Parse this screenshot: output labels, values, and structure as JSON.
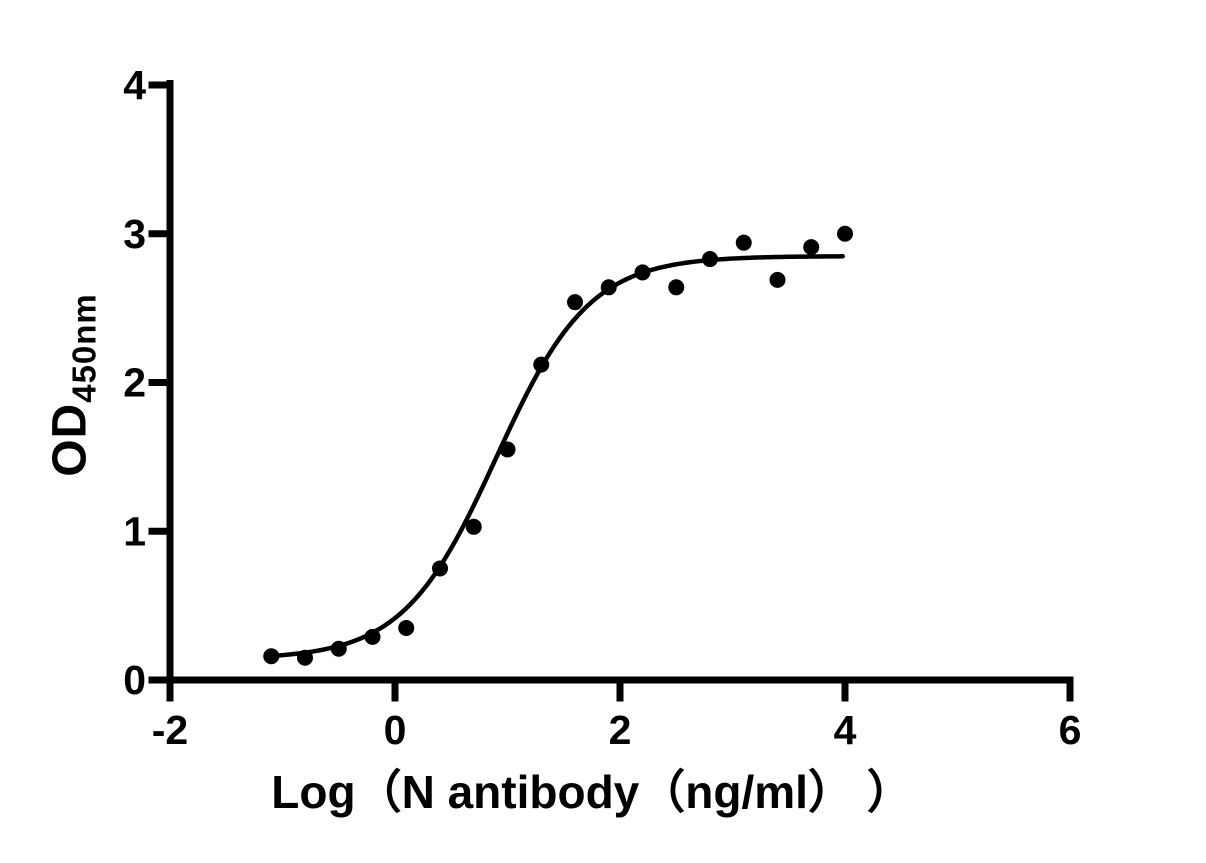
{
  "chart_data": {
    "type": "scatter",
    "title": "",
    "xlabel": "Log（N antibody（ng/ml） ）",
    "ylabel_main": "OD",
    "ylabel_sub": "450nm",
    "xlim": [
      -2,
      6
    ],
    "ylim": [
      0,
      4
    ],
    "x_ticks": [
      -2,
      0,
      2,
      4,
      6
    ],
    "x_tick_labels": [
      "-2",
      "0",
      "2",
      "4",
      "6"
    ],
    "y_ticks": [
      0,
      1,
      2,
      3,
      4
    ],
    "y_tick_labels": [
      "0",
      "1",
      "2",
      "3",
      "4"
    ],
    "grid": false,
    "legend": "none",
    "points": [
      {
        "x": -1.1,
        "y": 0.16
      },
      {
        "x": -0.8,
        "y": 0.15
      },
      {
        "x": -0.5,
        "y": 0.21
      },
      {
        "x": -0.2,
        "y": 0.29
      },
      {
        "x": 0.1,
        "y": 0.35
      },
      {
        "x": 0.4,
        "y": 0.75
      },
      {
        "x": 0.7,
        "y": 1.03
      },
      {
        "x": 1.0,
        "y": 1.55
      },
      {
        "x": 1.3,
        "y": 2.12
      },
      {
        "x": 1.6,
        "y": 2.54
      },
      {
        "x": 1.9,
        "y": 2.64
      },
      {
        "x": 2.2,
        "y": 2.74
      },
      {
        "x": 2.5,
        "y": 2.64
      },
      {
        "x": 2.8,
        "y": 2.83
      },
      {
        "x": 3.1,
        "y": 2.94
      },
      {
        "x": 3.4,
        "y": 2.69
      },
      {
        "x": 3.7,
        "y": 2.91
      },
      {
        "x": 4.0,
        "y": 3.0
      }
    ],
    "fit_curve": {
      "model": "4PL-sigmoid",
      "bottom": 0.14,
      "top": 2.85,
      "logEC50": 0.9,
      "hillslope": 1.05,
      "x_start": -1.1,
      "x_end": 4.0
    },
    "colors": {
      "points": "#000000",
      "curve": "#000000",
      "axis": "#000000",
      "text": "#000000",
      "background": "#ffffff"
    }
  }
}
